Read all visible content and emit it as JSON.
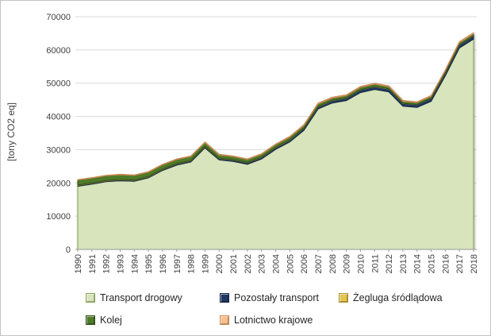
{
  "chart_data": {
    "type": "area",
    "stacked": true,
    "title": "",
    "xlabel": "",
    "ylabel": "[tony CO2 eq]",
    "ylim": [
      0,
      70000
    ],
    "ytick_step": 10000,
    "grid": true,
    "legend_position": "bottom",
    "categories": [
      "1990",
      "1991",
      "1992",
      "1993",
      "1994",
      "1995",
      "1996",
      "1997",
      "1998",
      "1999",
      "2000",
      "2001",
      "2002",
      "2003",
      "2004",
      "2005",
      "2006",
      "2007",
      "2008",
      "2009",
      "2010",
      "2011",
      "2012",
      "2013",
      "2014",
      "2015",
      "2016",
      "2017",
      "2018"
    ],
    "series": [
      {
        "name": "Transport drogowy",
        "fill": "#d7e4bc",
        "border": "#84a453",
        "values": [
          18970,
          19620,
          20360,
          20650,
          20485,
          21515,
          23740,
          25350,
          26315,
          30540,
          26920,
          26475,
          25615,
          27180,
          30090,
          32320,
          35805,
          42235,
          44035,
          44760,
          47150,
          48120,
          47400,
          43065,
          42685,
          44535,
          52195,
          60590,
          63270
        ]
      },
      {
        "name": "Pozostały transport",
        "fill": "#1f3864",
        "border": "#17283f",
        "values": [
          250,
          250,
          260,
          270,
          280,
          300,
          320,
          350,
          380,
          400,
          420,
          430,
          450,
          480,
          500,
          550,
          600,
          650,
          700,
          750,
          800,
          820,
          800,
          800,
          820,
          850,
          870,
          900,
          900
        ]
      },
      {
        "name": "Żegluga śródlądowa",
        "fill": "#e3c550",
        "border": "#ac9336",
        "values": [
          130,
          130,
          125,
          120,
          120,
          115,
          110,
          110,
          105,
          100,
          100,
          95,
          95,
          90,
          90,
          90,
          85,
          85,
          85,
          80,
          80,
          80,
          80,
          75,
          75,
          75,
          75,
          80,
          80
        ]
      },
      {
        "name": "Kolej",
        "fill": "#4e7b28",
        "border": "#2f4d19",
        "values": [
          1500,
          1450,
          1400,
          1400,
          1350,
          1300,
          1250,
          1200,
          1100,
          1050,
          950,
          900,
          850,
          850,
          800,
          800,
          750,
          750,
          700,
          650,
          700,
          700,
          650,
          600,
          550,
          550,
          550,
          600,
          600
        ]
      },
      {
        "name": "Lotnictwo krajowe",
        "fill": "#fabf8f",
        "border": "#c98850",
        "values": [
          150,
          150,
          155,
          160,
          165,
          170,
          180,
          190,
          200,
          210,
          210,
          200,
          190,
          200,
          220,
          240,
          260,
          280,
          280,
          260,
          270,
          280,
          270,
          260,
          270,
          290,
          310,
          330,
          350
        ]
      }
    ]
  },
  "axes": {
    "y_tick_labels": [
      "0",
      "10000",
      "20000",
      "30000",
      "40000",
      "50000",
      "60000",
      "70000"
    ]
  }
}
